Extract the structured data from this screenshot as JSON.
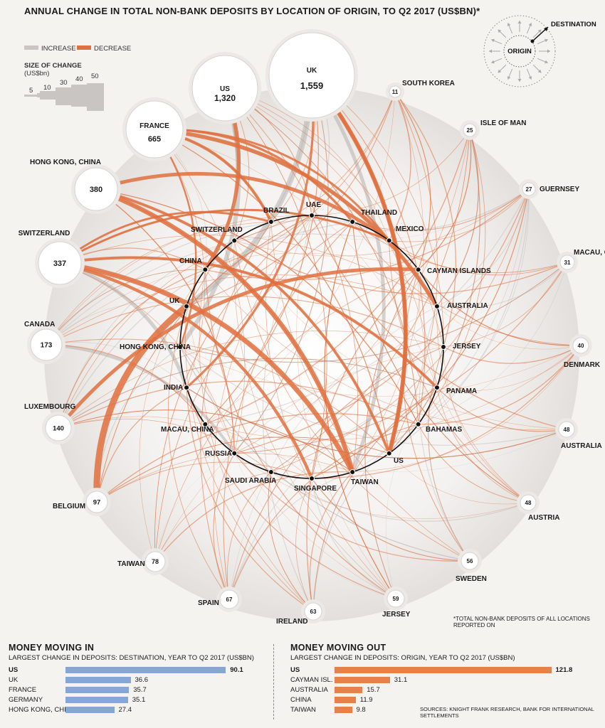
{
  "title": "ANNUAL CHANGE IN TOTAL NON-BANK DEPOSITS BY LOCATION OF ORIGIN, TO Q2 2017 (US$BN)*",
  "legend": {
    "increase": "INCREASE",
    "decrease": "DECREASE",
    "size_title": "SIZE OF CHANGE",
    "size_unit": "(US$bn)",
    "size_values": [
      "5",
      "10",
      "30",
      "40",
      "50"
    ],
    "origin_label": "ORIGIN",
    "destination_label": "DESTINATION"
  },
  "colors": {
    "increase": "#c8c5c2",
    "decrease": "#e0703e",
    "money_in_bar": "#86a6d6",
    "money_out_bar": "#e8804a"
  },
  "destinations": [
    {
      "name": "US",
      "value": "1,320"
    },
    {
      "name": "UK",
      "value": "1,559"
    },
    {
      "name": "FRANCE",
      "value": "665"
    },
    {
      "name": "HONG KONG, CHINA",
      "value": "380"
    },
    {
      "name": "SWITZERLAND",
      "value": "337"
    },
    {
      "name": "CANADA",
      "value": "173"
    },
    {
      "name": "LUXEMBOURG",
      "value": "140"
    },
    {
      "name": "BELGIUM",
      "value": "97"
    },
    {
      "name": "TAIWAN",
      "value": "78"
    },
    {
      "name": "SPAIN",
      "value": "67"
    },
    {
      "name": "IRELAND",
      "value": "63"
    },
    {
      "name": "JERSEY",
      "value": "59"
    },
    {
      "name": "SWEDEN",
      "value": "56"
    },
    {
      "name": "AUSTRIA",
      "value": "48"
    },
    {
      "name": "AUSTRALIA",
      "value": "48"
    },
    {
      "name": "DENMARK",
      "value": "40"
    },
    {
      "name": "MACAU, CHINA",
      "value": "31"
    },
    {
      "name": "GUERNSEY",
      "value": "27"
    },
    {
      "name": "ISLE OF MAN",
      "value": "25"
    },
    {
      "name": "SOUTH KOREA",
      "value": "11"
    }
  ],
  "origins": [
    "BRAZIL",
    "UAE",
    "THAILAND",
    "MEXICO",
    "CAYMAN ISLANDS",
    "AUSTRALIA",
    "JERSEY",
    "PANAMA",
    "BAHAMAS",
    "US",
    "TAIWAN",
    "SINGAPORE",
    "SAUDI ARABIA",
    "RUSSIA",
    "MACAU, CHINA",
    "INDIA",
    "HONG KONG, CHINA",
    "UK",
    "CHINA",
    "SWITZERLAND"
  ],
  "footnote": "*TOTAL NON-BANK DEPOSITS OF ALL LOCATIONS REPORTED ON",
  "sources": "SOURCES: KNIGHT FRANK RESEARCH, BANK FOR INTERNATIONAL SETTLEMENTS",
  "chart_data": [
    {
      "type": "bar",
      "title": "MONEY MOVING IN",
      "subtitle": "LARGEST CHANGE IN DEPOSITS: DESTINATION, YEAR TO Q2 2017 (US$BN)",
      "categories": [
        "US",
        "UK",
        "FRANCE",
        "GERMANY",
        "HONG KONG, CHINA"
      ],
      "values": [
        90.1,
        36.6,
        35.7,
        35.1,
        27.4
      ],
      "value_labels": [
        "90.1",
        "36.6",
        "35.7",
        "35.1",
        "27.4"
      ]
    },
    {
      "type": "bar",
      "title": "MONEY MOVING OUT",
      "subtitle": "LARGEST CHANGE IN DEPOSITS: ORIGIN, YEAR TO Q2 2017 (US$BN)",
      "categories": [
        "US",
        "CAYMAN ISL.",
        "AUSTRALIA",
        "CHINA",
        "TAIWAN"
      ],
      "values": [
        121.8,
        31.1,
        15.7,
        11.9,
        9.8
      ],
      "value_labels": [
        "121.8",
        "31.1",
        "15.7",
        "11.9",
        "9.8"
      ]
    }
  ]
}
